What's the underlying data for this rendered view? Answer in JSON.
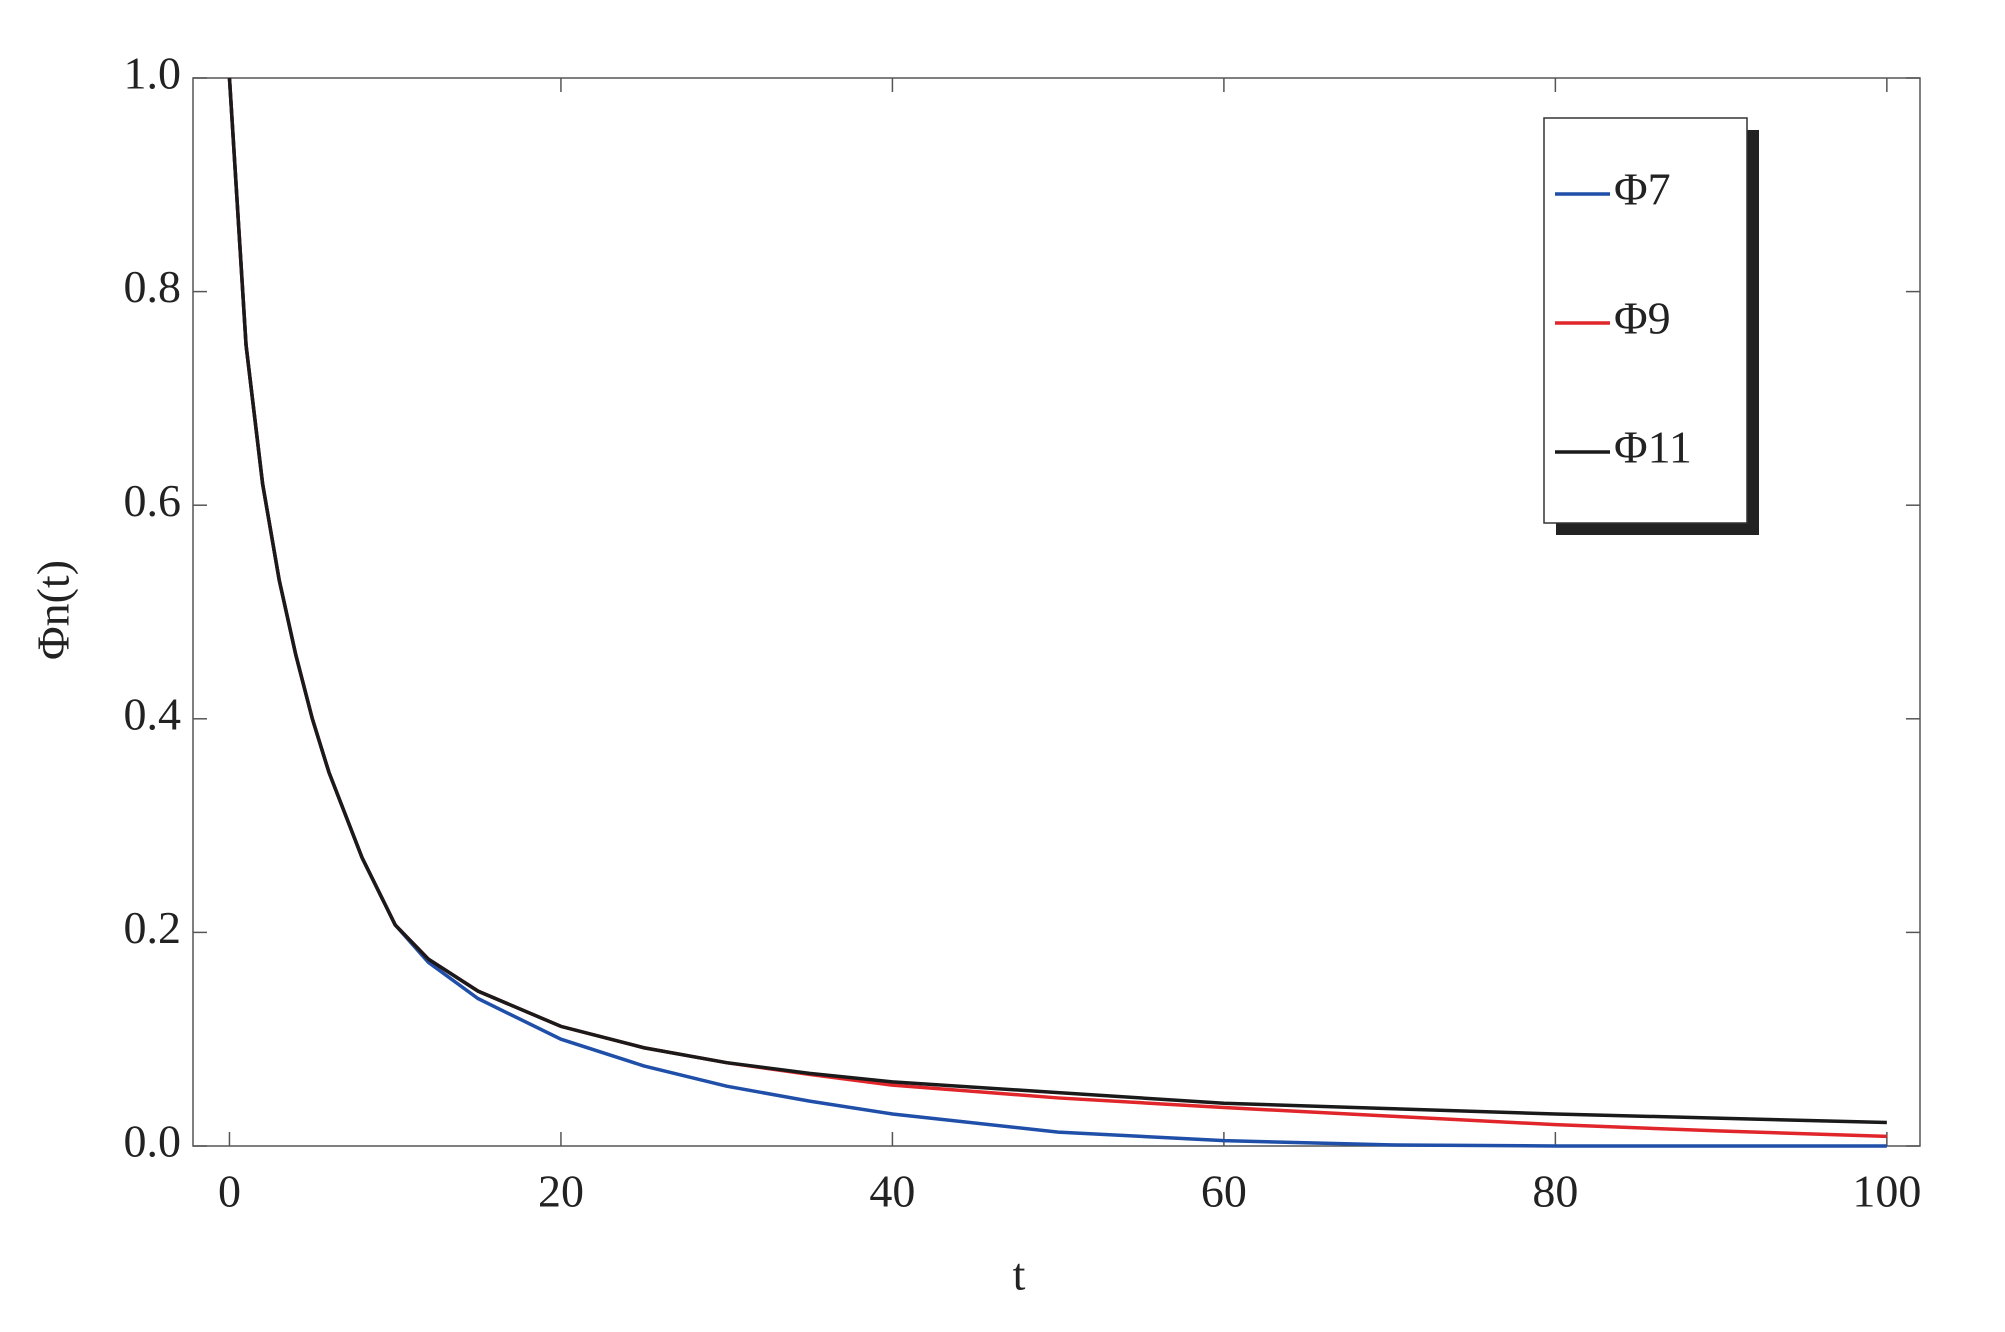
{
  "chart_data": {
    "type": "line",
    "xlabel": "t",
    "ylabel": "Φn(t)",
    "x": [
      0,
      1,
      2,
      3,
      4,
      5,
      6,
      8,
      10,
      12,
      15,
      20,
      25,
      30,
      35,
      40,
      50,
      60,
      70,
      80,
      90,
      100
    ],
    "series": [
      {
        "name": "Φ7",
        "color": "#1f4fa8",
        "values": [
          1,
          0.75,
          0.62,
          0.53,
          0.46,
          0.4,
          0.35,
          0.27,
          0.207,
          0.172,
          0.138,
          0.1,
          0.075,
          0.056,
          0.042,
          0.03,
          0.013,
          0.005,
          0.001,
          0,
          0,
          0
        ]
      },
      {
        "name": "Φ9",
        "color": "#e0262a",
        "values": [
          1,
          0.75,
          0.62,
          0.53,
          0.46,
          0.4,
          0.35,
          0.27,
          0.207,
          0.175,
          0.145,
          0.112,
          0.092,
          0.078,
          0.067,
          0.057,
          0.045,
          0.036,
          0.028,
          0.02,
          0.014,
          0.009
        ]
      },
      {
        "name": "Φ11",
        "color": "#1a1a1a",
        "values": [
          1,
          0.75,
          0.62,
          0.53,
          0.46,
          0.4,
          0.35,
          0.27,
          0.207,
          0.175,
          0.145,
          0.112,
          0.092,
          0.078,
          0.068,
          0.06,
          0.05,
          0.04,
          0.035,
          0.03,
          0.026,
          0.022
        ]
      }
    ],
    "xlim": [
      -2.2,
      102
    ],
    "ylim": [
      0,
      1
    ],
    "xticks": [
      0,
      20,
      40,
      60,
      80,
      100
    ],
    "yticks": [
      {
        "value": 0,
        "label": "0.0"
      },
      {
        "value": 0.2,
        "label": "0.2"
      },
      {
        "value": 0.4,
        "label": "0.4"
      },
      {
        "value": 0.6,
        "label": "0.6"
      },
      {
        "value": 0.8,
        "label": "0.8"
      },
      {
        "value": 1,
        "label": "1.0"
      }
    ],
    "legend": "upper-right",
    "grid": false
  }
}
